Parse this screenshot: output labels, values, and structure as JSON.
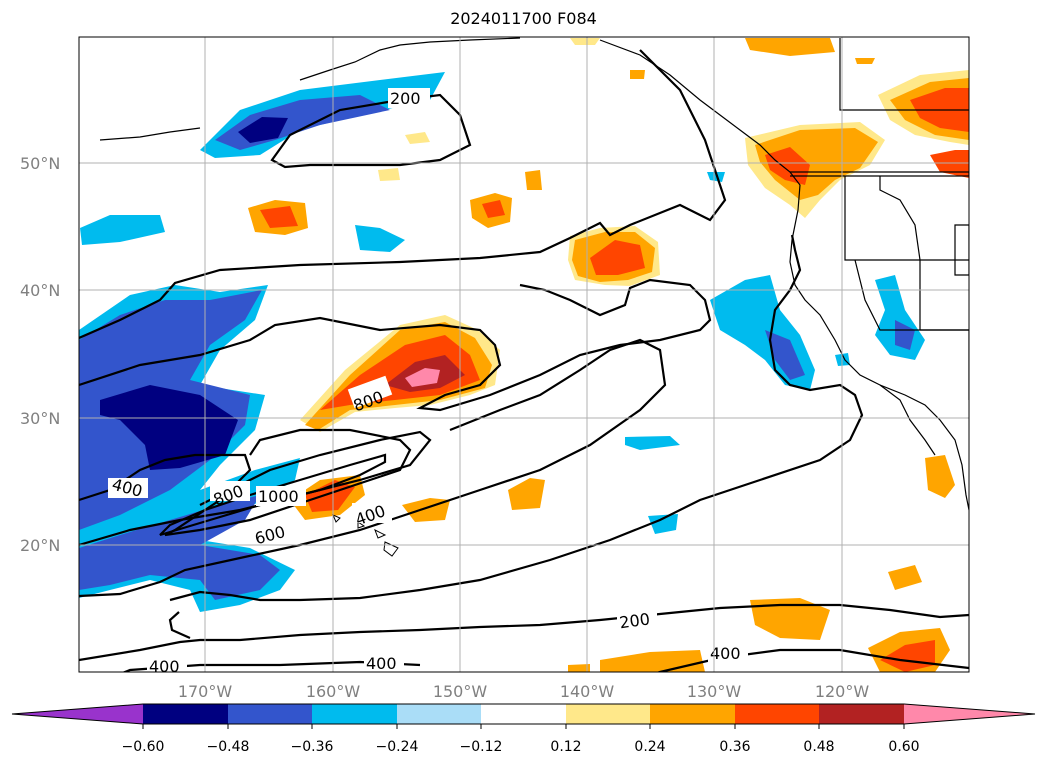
{
  "title": "2024011700 F084",
  "map": {
    "latitude_labels": [
      "50°N",
      "40°N",
      "30°N",
      "20°N"
    ],
    "longitude_labels": [
      "170°W",
      "160°W",
      "150°W",
      "140°W",
      "130°W",
      "120°W"
    ],
    "contour_labels": [
      "200",
      "800",
      "400",
      "800",
      "1000",
      "600",
      "400",
      "200",
      "400",
      "400",
      "400"
    ]
  },
  "colorbar": {
    "tick_labels": [
      "−0.60",
      "−0.48",
      "−0.36",
      "−0.24",
      "−0.12",
      "0.12",
      "0.24",
      "0.36",
      "0.48",
      "0.60"
    ],
    "colors": [
      "#9933cc",
      "#000080",
      "#3355cc",
      "#00bbee",
      "#aaddf7",
      "#ffffff",
      "#ffe88a",
      "#ffa500",
      "#ff4500",
      "#b22222",
      "#ff88aa"
    ]
  }
}
